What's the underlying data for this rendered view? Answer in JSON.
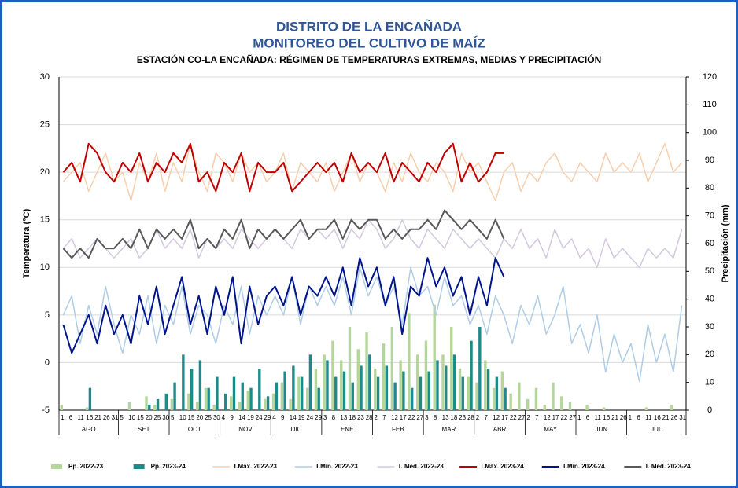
{
  "chart_data": {
    "type": "combo",
    "title": "DISTRITO DE LA ENCAÑADA",
    "title2": "MONITOREO DEL CULTIVO DE MAÍZ",
    "subtitle": "ESTACIÓN CO-LA ENCAÑADA: RÉGIMEN DE TEMPERATURAS EXTREMAS, MEDIAS Y PRECIPITACIÓN",
    "ylabel": "Temperatura (°C)",
    "y2label": "Precipitación (mm)",
    "ylim": [
      -5,
      30
    ],
    "yticks": [
      -5,
      0,
      5,
      10,
      15,
      20,
      25,
      30
    ],
    "y2lim": [
      0,
      120
    ],
    "y2ticks": [
      0,
      10,
      20,
      30,
      40,
      50,
      60,
      70,
      80,
      90,
      100,
      110,
      120
    ],
    "grid": true,
    "months": [
      {
        "name": "AGO",
        "days": [
          1,
          6,
          11,
          16,
          21,
          26,
          31
        ]
      },
      {
        "name": "SET",
        "days": [
          5,
          10,
          15,
          20,
          25,
          30
        ]
      },
      {
        "name": "OCT",
        "days": [
          5,
          10,
          15,
          20,
          25,
          30
        ]
      },
      {
        "name": "NOV",
        "days": [
          4,
          9,
          14,
          19,
          24,
          29
        ]
      },
      {
        "name": "DIC",
        "days": [
          4,
          9,
          14,
          19,
          24,
          29
        ]
      },
      {
        "name": "ENE",
        "days": [
          3,
          8,
          13,
          18,
          23,
          28
        ]
      },
      {
        "name": "FEB",
        "days": [
          2,
          7,
          12,
          17,
          22,
          27
        ]
      },
      {
        "name": "MAR",
        "days": [
          3,
          8,
          13,
          18,
          23,
          28
        ]
      },
      {
        "name": "ABR",
        "days": [
          2,
          7,
          12,
          17,
          22,
          27
        ]
      },
      {
        "name": "MAY",
        "days": [
          2,
          7,
          12,
          17,
          22,
          27
        ]
      },
      {
        "name": "JUN",
        "days": [
          1,
          6,
          11,
          16,
          21,
          26
        ]
      },
      {
        "name": "JUL",
        "days": [
          1,
          6,
          11,
          16,
          21,
          26,
          31
        ]
      }
    ],
    "series": [
      {
        "name": "Pp. 2022-23",
        "kind": "bar",
        "axis": "y2",
        "color": "#b5d69a",
        "values": [
          2,
          0,
          0,
          1,
          0,
          0,
          0,
          0,
          3,
          0,
          5,
          2,
          0,
          4,
          0,
          6,
          3,
          8,
          2,
          0,
          5,
          3,
          7,
          0,
          4,
          6,
          10,
          4,
          12,
          8,
          15,
          20,
          25,
          18,
          30,
          22,
          28,
          15,
          24,
          30,
          18,
          35,
          20,
          25,
          38,
          20,
          30,
          15,
          12,
          10,
          18,
          8,
          14,
          6,
          10,
          4,
          8,
          2,
          10,
          5,
          3,
          0,
          2,
          0,
          1,
          0,
          0,
          0,
          0,
          1,
          0,
          0,
          2,
          0
        ]
      },
      {
        "name": "Pp. 2023-24",
        "kind": "bar",
        "axis": "y2",
        "color": "#1f8a8a",
        "values": [
          0,
          0,
          0,
          8,
          0,
          0,
          0,
          0,
          0,
          0,
          2,
          4,
          6,
          10,
          20,
          15,
          18,
          8,
          12,
          6,
          12,
          10,
          8,
          15,
          5,
          10,
          14,
          16,
          12,
          20,
          8,
          18,
          12,
          14,
          10,
          16,
          20,
          12,
          16,
          10,
          14,
          8,
          12,
          14,
          18,
          16,
          20,
          12,
          25,
          30,
          15,
          12,
          8,
          null,
          null,
          null,
          null,
          null,
          null,
          null,
          null,
          null,
          null,
          null,
          null,
          null,
          null,
          null,
          null,
          null,
          null,
          null,
          null,
          null
        ]
      },
      {
        "name": "T.Máx. 2022-23",
        "kind": "line",
        "color": "#f8cfae",
        "width": 1.5,
        "values": [
          19,
          20,
          21,
          18,
          20,
          22,
          19,
          20,
          17,
          21,
          19,
          22,
          18,
          21,
          19,
          23,
          20,
          18,
          22,
          21,
          19,
          22,
          20,
          21,
          19,
          20,
          22,
          18,
          21,
          20,
          19,
          21,
          18,
          20,
          22,
          19,
          21,
          20,
          18,
          21,
          19,
          22,
          20,
          19,
          21,
          20,
          18,
          22,
          20,
          21,
          19,
          17,
          20,
          21,
          18,
          20,
          19,
          21,
          22,
          20,
          19,
          21,
          20,
          19,
          22,
          20,
          21,
          20,
          22,
          19,
          21,
          23,
          20,
          21
        ]
      },
      {
        "name": "T.Mín. 2022-23",
        "kind": "line",
        "color": "#b0cde6",
        "width": 1.5,
        "values": [
          5,
          7,
          2,
          6,
          3,
          8,
          4,
          1,
          5,
          3,
          7,
          2,
          6,
          4,
          8,
          3,
          6,
          5,
          2,
          6,
          4,
          8,
          3,
          7,
          5,
          7,
          5,
          9,
          4,
          8,
          6,
          8,
          6,
          9,
          5,
          10,
          7,
          9,
          6,
          8,
          4,
          10,
          7,
          8,
          5,
          9,
          6,
          7,
          4,
          6,
          3,
          7,
          5,
          2,
          6,
          4,
          7,
          3,
          5,
          8,
          2,
          4,
          1,
          5,
          -1,
          3,
          0,
          2,
          -2,
          4,
          0,
          3,
          -1,
          6
        ]
      },
      {
        "name": "T. Med. 2022-23",
        "kind": "line",
        "color": "#d4c8e0",
        "width": 1.5,
        "values": [
          12,
          13,
          11,
          12,
          13,
          12,
          11,
          12,
          13,
          11,
          12,
          14,
          12,
          13,
          12,
          14,
          11,
          13,
          12,
          13,
          12,
          14,
          13,
          12,
          13,
          14,
          13,
          12,
          14,
          13,
          14,
          13,
          14,
          12,
          14,
          13,
          15,
          14,
          12,
          13,
          15,
          13,
          12,
          14,
          13,
          12,
          14,
          13,
          12,
          13,
          12,
          11,
          13,
          12,
          14,
          12,
          13,
          11,
          14,
          12,
          13,
          11,
          12,
          10,
          13,
          11,
          12,
          11,
          10,
          12,
          11,
          12,
          11,
          14
        ]
      },
      {
        "name": "T.Máx. 2023-24",
        "kind": "line",
        "color": "#c00000",
        "width": 2,
        "values": [
          20,
          21,
          19,
          23,
          22,
          20,
          19,
          21,
          20,
          22,
          19,
          21,
          20,
          22,
          21,
          23,
          19,
          20,
          18,
          21,
          20,
          22,
          18,
          21,
          20,
          20,
          21,
          18,
          19,
          20,
          21,
          20,
          21,
          19,
          22,
          20,
          21,
          20,
          22,
          19,
          21,
          20,
          19,
          21,
          20,
          22,
          23,
          19,
          21,
          19,
          20,
          22,
          22,
          null,
          null,
          null,
          null,
          null,
          null,
          null,
          null,
          null,
          null,
          null,
          null,
          null,
          null,
          null,
          null,
          null,
          null,
          null,
          null,
          null
        ]
      },
      {
        "name": "T.Mín. 2023-24",
        "kind": "line",
        "color": "#00148c",
        "width": 2,
        "values": [
          4,
          1,
          3,
          5,
          2,
          6,
          3,
          5,
          2,
          7,
          4,
          8,
          3,
          6,
          9,
          4,
          7,
          3,
          8,
          5,
          9,
          2,
          8,
          4,
          7,
          8,
          6,
          9,
          5,
          8,
          7,
          9,
          7,
          10,
          6,
          11,
          8,
          10,
          6,
          9,
          3,
          8,
          7,
          11,
          8,
          10,
          7,
          9,
          5,
          9,
          6,
          11,
          9,
          null,
          null,
          null,
          null,
          null,
          null,
          null,
          null,
          null,
          null,
          null,
          null,
          null,
          null,
          null,
          null,
          null,
          null,
          null,
          null,
          null
        ]
      },
      {
        "name": "T. Med. 2023-24",
        "kind": "line",
        "color": "#595959",
        "width": 2,
        "values": [
          12,
          11,
          12,
          11,
          13,
          12,
          12,
          13,
          12,
          14,
          12,
          14,
          13,
          14,
          13,
          15,
          12,
          13,
          12,
          14,
          13,
          15,
          12,
          14,
          13,
          14,
          13,
          14,
          15,
          13,
          14,
          14,
          15,
          13,
          15,
          14,
          15,
          15,
          13,
          14,
          13,
          14,
          14,
          15,
          14,
          16,
          15,
          14,
          15,
          14,
          13,
          15,
          13,
          null,
          null,
          null,
          null,
          null,
          null,
          null,
          null,
          null,
          null,
          null,
          null,
          null,
          null,
          null,
          null,
          null,
          null,
          null,
          null,
          null
        ]
      }
    ]
  }
}
